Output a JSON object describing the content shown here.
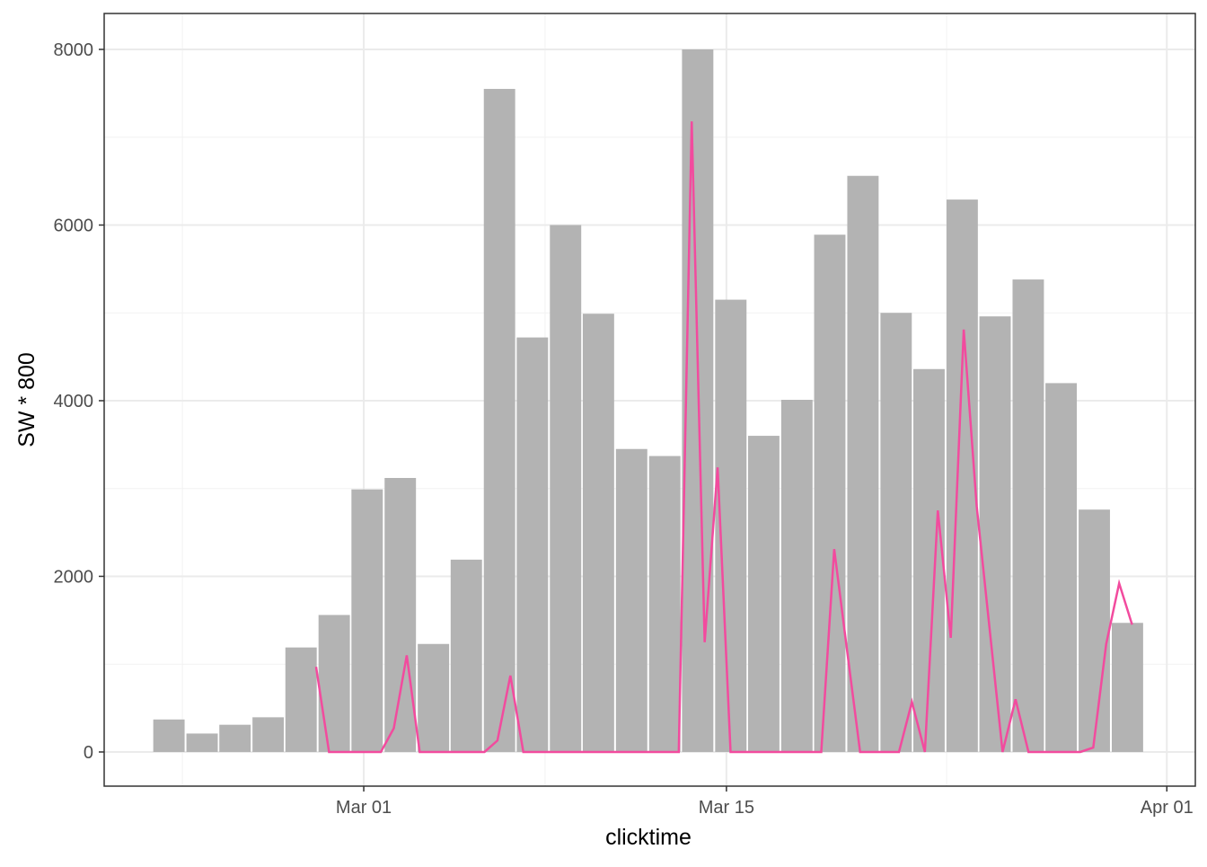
{
  "chart_data": {
    "type": "bar",
    "xlabel": "clicktime",
    "ylabel": "SW * 800",
    "xlim": [
      -10.02,
      32.1
    ],
    "ylim": [
      -389,
      8409
    ],
    "xticks": [
      {
        "value": 0,
        "label": "Mar 01"
      },
      {
        "value": 14,
        "label": "Mar 15"
      },
      {
        "value": 31,
        "label": "Apr 01"
      }
    ],
    "yticks": [
      0,
      2000,
      4000,
      6000,
      8000
    ],
    "xminor": [
      -7,
      7,
      22.5
    ],
    "yminor": [
      1000,
      3000,
      5000,
      7000
    ],
    "grid": true,
    "bar_width": 1.21,
    "series": [
      {
        "type": "bar",
        "color": "#b3b3b3",
        "x": [
          -7.52,
          -6.24,
          -4.97,
          -3.69,
          -2.42,
          -1.14,
          0.13,
          1.41,
          2.69,
          3.96,
          5.24,
          6.51,
          7.79,
          9.06,
          10.34,
          11.62,
          12.89,
          14.17,
          15.44,
          16.72,
          17.99,
          19.27,
          20.55,
          21.82,
          23.1,
          24.37,
          25.65,
          26.92,
          28.2,
          29.48
        ],
        "values": [
          370,
          210,
          310,
          395,
          1190,
          1560,
          2990,
          3120,
          1230,
          2190,
          7550,
          4720,
          6000,
          4990,
          3450,
          3370,
          8000,
          5150,
          3600,
          4010,
          5890,
          6560,
          5000,
          4360,
          6290,
          4960,
          5380,
          4200,
          2760,
          1470
        ]
      },
      {
        "type": "line",
        "color": "#f24b9e",
        "x": [
          -1.84,
          -1.34,
          -0.84,
          -0.34,
          0.16,
          0.66,
          1.16,
          1.66,
          2.16,
          2.66,
          3.16,
          3.66,
          4.16,
          4.66,
          5.16,
          5.66,
          6.16,
          6.66,
          7.16,
          7.66,
          8.16,
          8.66,
          9.16,
          9.66,
          10.16,
          10.66,
          11.16,
          11.66,
          12.16,
          12.66,
          13.16,
          13.66,
          14.16,
          14.66,
          15.16,
          15.66,
          16.16,
          16.66,
          17.16,
          17.66,
          18.16,
          18.66,
          19.16,
          19.66,
          20.16,
          20.66,
          21.16,
          21.66,
          22.16,
          22.66,
          23.16,
          23.66,
          24.16,
          24.66,
          25.16,
          25.66,
          26.16,
          26.66,
          27.16,
          27.66,
          28.16,
          28.66,
          29.16,
          29.66
        ],
        "values": [
          970,
          0,
          0,
          0,
          0,
          0,
          270,
          1100,
          0,
          0,
          0,
          0,
          0,
          0,
          130,
          870,
          0,
          0,
          0,
          0,
          0,
          0,
          0,
          0,
          0,
          0,
          0,
          0,
          0,
          7180,
          1250,
          3240,
          0,
          0,
          0,
          0,
          0,
          0,
          0,
          0,
          2310,
          1150,
          0,
          0,
          0,
          0,
          570,
          0,
          2750,
          1300,
          4810,
          2800,
          1400,
          0,
          600,
          0,
          0,
          0,
          0,
          0,
          50,
          1230,
          1920,
          1450
        ]
      }
    ]
  }
}
